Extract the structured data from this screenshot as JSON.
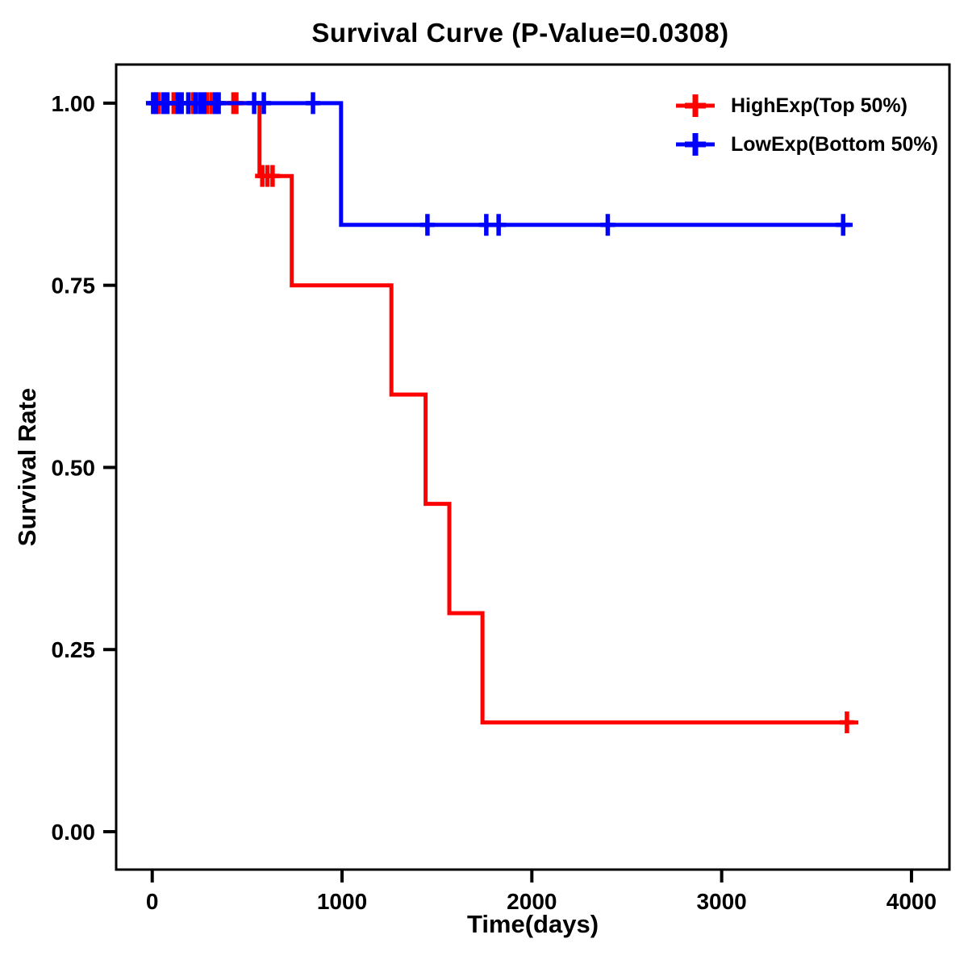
{
  "page": {
    "title": "Survival Curve (P-Value=0.0308)"
  },
  "legend": {
    "items": [
      {
        "label": "HighExp(Top 50%)",
        "color": "#ff0000"
      },
      {
        "label": "LowExp(Bottom 50%)",
        "color": "#0000ff"
      }
    ]
  },
  "chart_data": {
    "type": "line",
    "subtype": "kaplan-meier-step-survival",
    "title": "Survival Curve (P-Value=0.0308)",
    "p_value": 0.0308,
    "xlabel": "Time(days)",
    "ylabel": "Survival Rate",
    "xlim": [
      -190,
      4200
    ],
    "ylim": [
      -0.052,
      1.053
    ],
    "xticks": [
      0,
      1000,
      2000,
      3000,
      4000
    ],
    "xtick_labels": [
      "0",
      "1000",
      "2000",
      "3000",
      "4000"
    ],
    "yticks": [
      0.0,
      0.25,
      0.5,
      0.75,
      1.0
    ],
    "ytick_labels": [
      "0.00",
      "0.25",
      "0.50",
      "0.75",
      "1.00"
    ],
    "grid": false,
    "legend_position": "top-right",
    "frame_color": "#000000",
    "series": [
      {
        "name": "HighExp(Top 50%)",
        "slug": "highexp",
        "color": "#ff0000",
        "points": [
          [
            0,
            1.0
          ],
          [
            565,
            1.0
          ],
          [
            565,
            0.9
          ],
          [
            735,
            0.9
          ],
          [
            735,
            0.75
          ],
          [
            1260,
            0.75
          ],
          [
            1260,
            0.6
          ],
          [
            1440,
            0.6
          ],
          [
            1440,
            0.45
          ],
          [
            1565,
            0.45
          ],
          [
            1565,
            0.3
          ],
          [
            1740,
            0.3
          ],
          [
            1740,
            0.15
          ],
          [
            3720,
            0.15
          ]
        ],
        "censors": [
          [
            35,
            1.0
          ],
          [
            113,
            1.0
          ],
          [
            215,
            1.0
          ],
          [
            287,
            1.0
          ],
          [
            312,
            1.0
          ],
          [
            428,
            1.0
          ],
          [
            443,
            1.0
          ],
          [
            580,
            0.9
          ],
          [
            607,
            0.9
          ],
          [
            634,
            0.9
          ],
          [
            3660,
            0.15
          ]
        ]
      },
      {
        "name": "LowExp(Bottom 50%)",
        "slug": "lowexp",
        "color": "#0000ff",
        "points": [
          [
            0,
            1.0
          ],
          [
            995,
            1.0
          ],
          [
            995,
            0.833
          ],
          [
            3690,
            0.833
          ]
        ],
        "censors": [
          [
            5,
            1.0
          ],
          [
            20,
            1.0
          ],
          [
            60,
            1.0
          ],
          [
            80,
            1.0
          ],
          [
            135,
            1.0
          ],
          [
            155,
            1.0
          ],
          [
            190,
            1.0
          ],
          [
            228,
            1.0
          ],
          [
            252,
            1.0
          ],
          [
            274,
            1.0
          ],
          [
            332,
            1.0
          ],
          [
            350,
            1.0
          ],
          [
            537,
            1.0
          ],
          [
            588,
            1.0
          ],
          [
            847,
            1.0
          ],
          [
            1450,
            0.833
          ],
          [
            1760,
            0.833
          ],
          [
            1825,
            0.833
          ],
          [
            2400,
            0.833
          ],
          [
            3640,
            0.833
          ]
        ]
      }
    ]
  }
}
